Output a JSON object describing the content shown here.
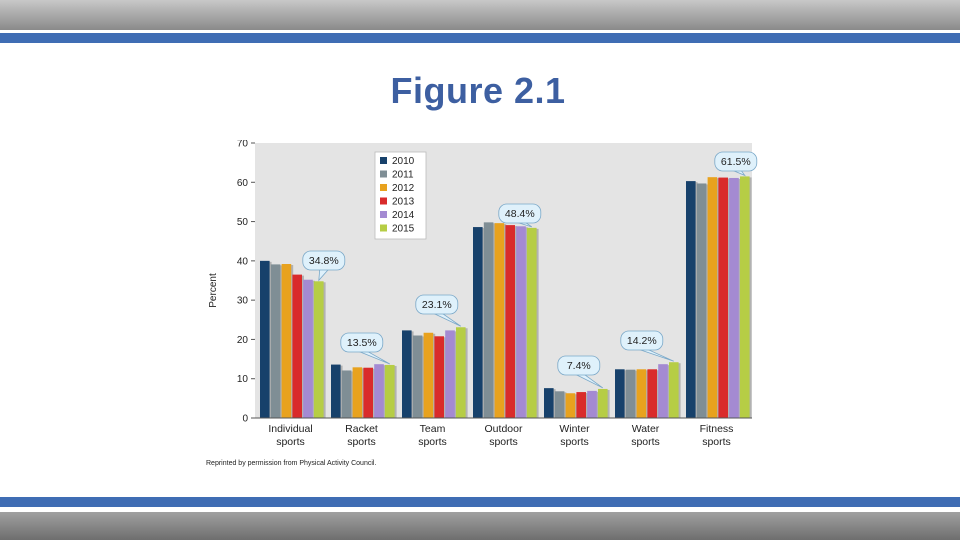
{
  "slide": {
    "title": "Figure 2.1",
    "credit": "Reprinted by permission from Physical Activity Council."
  },
  "chart_data": {
    "type": "bar",
    "ylabel": "Percent",
    "xlabel": "",
    "ylim": [
      0,
      70
    ],
    "yticks": [
      0,
      10,
      20,
      30,
      40,
      50,
      60,
      70
    ],
    "grid": false,
    "legend_position": "top-left",
    "categories": [
      [
        "Individual",
        "sports"
      ],
      [
        "Racket",
        "sports"
      ],
      [
        "Team",
        "sports"
      ],
      [
        "Outdoor",
        "sports"
      ],
      [
        "Winter",
        "sports"
      ],
      [
        "Water",
        "sports"
      ],
      [
        "Fitness",
        "sports"
      ]
    ],
    "series": [
      {
        "name": "2010",
        "color": "#17416b",
        "values": [
          40.0,
          13.6,
          22.3,
          48.6,
          7.6,
          12.4,
          60.3
        ]
      },
      {
        "name": "2011",
        "color": "#7f8e95",
        "values": [
          39.1,
          12.1,
          21.0,
          49.8,
          6.8,
          12.3,
          59.7
        ]
      },
      {
        "name": "2012",
        "color": "#e8a21e",
        "values": [
          39.2,
          12.9,
          21.7,
          49.6,
          6.3,
          12.4,
          61.3
        ]
      },
      {
        "name": "2013",
        "color": "#d92b2b",
        "values": [
          36.5,
          12.8,
          20.8,
          49.1,
          6.6,
          12.4,
          61.2
        ]
      },
      {
        "name": "2014",
        "color": "#a48ad2",
        "values": [
          35.2,
          13.7,
          22.3,
          48.8,
          6.9,
          13.7,
          61.1
        ]
      },
      {
        "name": "2015",
        "color": "#b6cd45",
        "values": [
          34.8,
          13.5,
          23.1,
          48.4,
          7.4,
          14.2,
          61.5
        ]
      }
    ],
    "annotations": [
      {
        "category_index": 0,
        "text": "34.8%"
      },
      {
        "category_index": 1,
        "text": "13.5%"
      },
      {
        "category_index": 2,
        "text": "23.1%"
      },
      {
        "category_index": 3,
        "text": "48.4%"
      },
      {
        "category_index": 4,
        "text": "7.4%"
      },
      {
        "category_index": 5,
        "text": "14.2%"
      },
      {
        "category_index": 6,
        "text": "61.5%"
      }
    ]
  }
}
